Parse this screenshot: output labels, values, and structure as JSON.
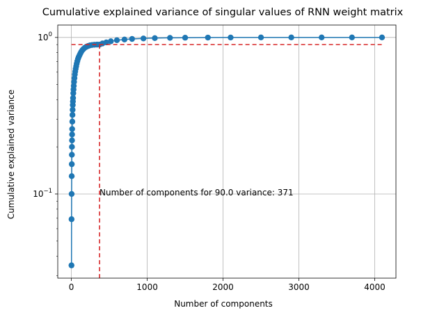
{
  "chart_data": {
    "type": "scatter",
    "title": "Cumulative explained variance of singular values of RNN weight matrix",
    "xlabel": "Number of components",
    "ylabel": "Cumulative explained variance",
    "xlim": [
      -180,
      4280
    ],
    "ylim": [
      0.029,
      1.2
    ],
    "yscale": "log",
    "grid": true,
    "x_ticks": [
      {
        "value": 0,
        "label": "0"
      },
      {
        "value": 1000,
        "label": "1000"
      },
      {
        "value": 2000,
        "label": "2000"
      },
      {
        "value": 3000,
        "label": "3000"
      },
      {
        "value": 4000,
        "label": "4000"
      }
    ],
    "y_ticks": [
      {
        "value": 0.1,
        "label_base": "10",
        "label_exp": "−1"
      },
      {
        "value": 1,
        "label_base": "10",
        "label_exp": "0"
      }
    ],
    "series": [
      {
        "color": "#1f77b4",
        "line_color": "#1f77b4",
        "x": [
          1,
          2,
          3,
          4,
          5,
          6,
          7,
          8,
          9,
          10,
          12,
          14,
          16,
          18,
          20,
          22,
          25,
          28,
          31,
          35,
          40,
          45,
          50,
          56,
          63,
          70,
          78,
          87,
          96,
          107,
          118,
          130,
          145,
          160,
          178,
          198,
          220,
          245,
          273,
          304,
          338,
          371,
          410,
          460,
          520,
          600,
          700,
          800,
          950,
          1100,
          1300,
          1500,
          1800,
          2100,
          2500,
          2900,
          3300,
          3700,
          4096
        ],
        "values": [
          0.035,
          0.069,
          0.1,
          0.13,
          0.155,
          0.178,
          0.2,
          0.22,
          0.24,
          0.26,
          0.29,
          0.32,
          0.345,
          0.37,
          0.39,
          0.41,
          0.44,
          0.465,
          0.49,
          0.52,
          0.55,
          0.58,
          0.605,
          0.63,
          0.655,
          0.68,
          0.705,
          0.73,
          0.75,
          0.77,
          0.79,
          0.81,
          0.83,
          0.845,
          0.86,
          0.872,
          0.882,
          0.89,
          0.895,
          0.898,
          0.9,
          0.9,
          0.915,
          0.93,
          0.945,
          0.96,
          0.97,
          0.978,
          0.985,
          0.99,
          0.994,
          0.996,
          0.998,
          0.999,
          1.0,
          1.0,
          1.0,
          1.0,
          1.0
        ]
      }
    ],
    "threshold": {
      "value": 0.9,
      "components": 371,
      "color": "#d62728",
      "x_end": 4096
    },
    "annotation": {
      "text": "Number of components for 90.0 variance: 371",
      "x": 371,
      "y": 0.1
    }
  }
}
